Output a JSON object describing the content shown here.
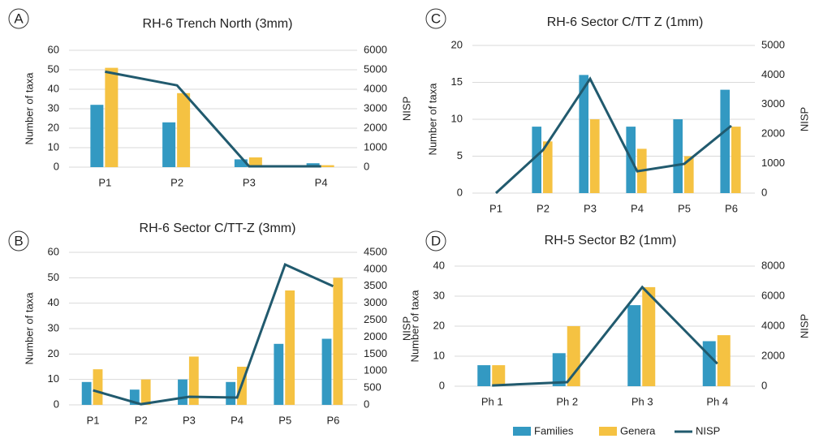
{
  "chart_data": [
    {
      "type": "bar",
      "panel": "A",
      "title": "RH-6 Trench North (3mm)",
      "ylabel": "Number of taxa",
      "y2label": "NISP",
      "categories": [
        "P1",
        "P2",
        "P3",
        "P4"
      ],
      "ylim": [
        0,
        60
      ],
      "yticks": [
        0,
        10,
        20,
        30,
        40,
        50,
        60
      ],
      "y2lim": [
        0,
        6000
      ],
      "y2ticks": [
        0,
        1000,
        2000,
        3000,
        4000,
        5000,
        6000
      ],
      "grid": true,
      "series": [
        {
          "name": "Families",
          "color": "#3399c2",
          "values": [
            32,
            23,
            4,
            2
          ]
        },
        {
          "name": "Genera",
          "color": "#f5c242",
          "values": [
            51,
            38,
            5,
            1
          ]
        },
        {
          "name": "NISP",
          "color": "#215a6e",
          "axis": "y2",
          "values": [
            4900,
            4200,
            40,
            40
          ]
        }
      ]
    },
    {
      "type": "bar",
      "panel": "B",
      "title": "RH-6 Sector C/TT-Z (3mm)",
      "ylabel": "Number of taxa",
      "y2label": "NISP",
      "categories": [
        "P1",
        "P2",
        "P3",
        "P4",
        "P5",
        "P6"
      ],
      "ylim": [
        0,
        60
      ],
      "yticks": [
        0,
        10,
        20,
        30,
        40,
        50,
        60
      ],
      "y2lim": [
        0,
        4500
      ],
      "y2ticks": [
        0,
        500,
        1000,
        1500,
        2000,
        2500,
        3000,
        3500,
        4000,
        4500
      ],
      "grid": true,
      "series": [
        {
          "name": "Families",
          "color": "#3399c2",
          "values": [
            9,
            6,
            10,
            9,
            24,
            26
          ]
        },
        {
          "name": "Genera",
          "color": "#f5c242",
          "values": [
            14,
            10,
            19,
            15,
            45,
            50
          ]
        },
        {
          "name": "NISP",
          "color": "#215a6e",
          "axis": "y2",
          "values": [
            430,
            20,
            240,
            215,
            4140,
            3500
          ]
        }
      ]
    },
    {
      "type": "bar",
      "panel": "C",
      "title": "RH-6 Sector C/TT Z (1mm)",
      "ylabel": "Number of taxa",
      "y2label": "NISP",
      "categories": [
        "P1",
        "P2",
        "P3",
        "P4",
        "P5",
        "P6"
      ],
      "ylim": [
        0,
        20
      ],
      "yticks": [
        0,
        5,
        10,
        15,
        20
      ],
      "y2lim": [
        0,
        5000
      ],
      "y2ticks": [
        0,
        1000,
        2000,
        3000,
        4000,
        5000
      ],
      "grid": true,
      "series": [
        {
          "name": "Families",
          "color": "#3399c2",
          "values": [
            0,
            9,
            16,
            9,
            10,
            14
          ]
        },
        {
          "name": "Genera",
          "color": "#f5c242",
          "values": [
            0,
            7,
            10,
            6,
            5,
            9
          ]
        },
        {
          "name": "NISP",
          "color": "#215a6e",
          "axis": "y2",
          "values": [
            0,
            1460,
            3870,
            740,
            990,
            2280
          ]
        }
      ]
    },
    {
      "type": "bar",
      "panel": "D",
      "title": "RH-5 Sector B2  (1mm)",
      "ylabel": "Number of taxa",
      "y2label": "NISP",
      "categories": [
        "Ph 1",
        "Ph 2",
        "Ph 3",
        "Ph 4"
      ],
      "ylim": [
        0,
        40
      ],
      "yticks": [
        0,
        10,
        20,
        30,
        40
      ],
      "y2lim": [
        0,
        8000
      ],
      "y2ticks": [
        0,
        2000,
        4000,
        6000,
        8000
      ],
      "grid": true,
      "series": [
        {
          "name": "Families",
          "color": "#3399c2",
          "values": [
            7,
            11,
            27,
            15
          ]
        },
        {
          "name": "Genera",
          "color": "#f5c242",
          "values": [
            7,
            20,
            33,
            17
          ]
        },
        {
          "name": "NISP",
          "color": "#215a6e",
          "axis": "y2",
          "values": [
            50,
            270,
            6600,
            1500
          ]
        }
      ]
    }
  ]
}
